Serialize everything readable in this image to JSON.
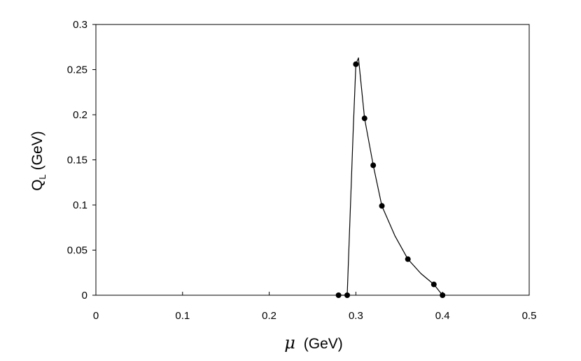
{
  "chart_data": {
    "type": "line",
    "title": "",
    "xlabel_symbol": "μ",
    "xlabel_unit": "(GeV)",
    "ylabel_main": "Q",
    "ylabel_sub": "L",
    "ylabel_unit": "(GeV)",
    "xlim": [
      0,
      0.5
    ],
    "ylim": [
      0,
      0.3
    ],
    "x_ticks": [
      "0",
      "0.1",
      "0.2",
      "0.3",
      "0.4",
      "0.5"
    ],
    "y_ticks": [
      "0",
      "0.05",
      "0.1",
      "0.15",
      "0.2",
      "0.25",
      "0.3"
    ],
    "grid": false,
    "legend": "none",
    "series": [
      {
        "x": [
          0.28,
          0.29,
          0.3,
          0.31,
          0.32,
          0.33,
          0.36,
          0.39,
          0.4
        ],
        "y": [
          0.0,
          0.0,
          0.256,
          0.196,
          0.144,
          0.099,
          0.04,
          0.012,
          0.0
        ]
      }
    ],
    "curve": {
      "x": [
        0.28,
        0.29,
        0.297,
        0.3,
        0.303,
        0.31,
        0.32,
        0.33,
        0.345,
        0.36,
        0.375,
        0.39,
        0.4
      ],
      "y": [
        0.0,
        0.0,
        0.185,
        0.256,
        0.263,
        0.196,
        0.144,
        0.099,
        0.066,
        0.04,
        0.024,
        0.012,
        0.0
      ]
    },
    "colors": {
      "line": "#000000",
      "marker": "#000000",
      "axis": "#000000"
    }
  }
}
